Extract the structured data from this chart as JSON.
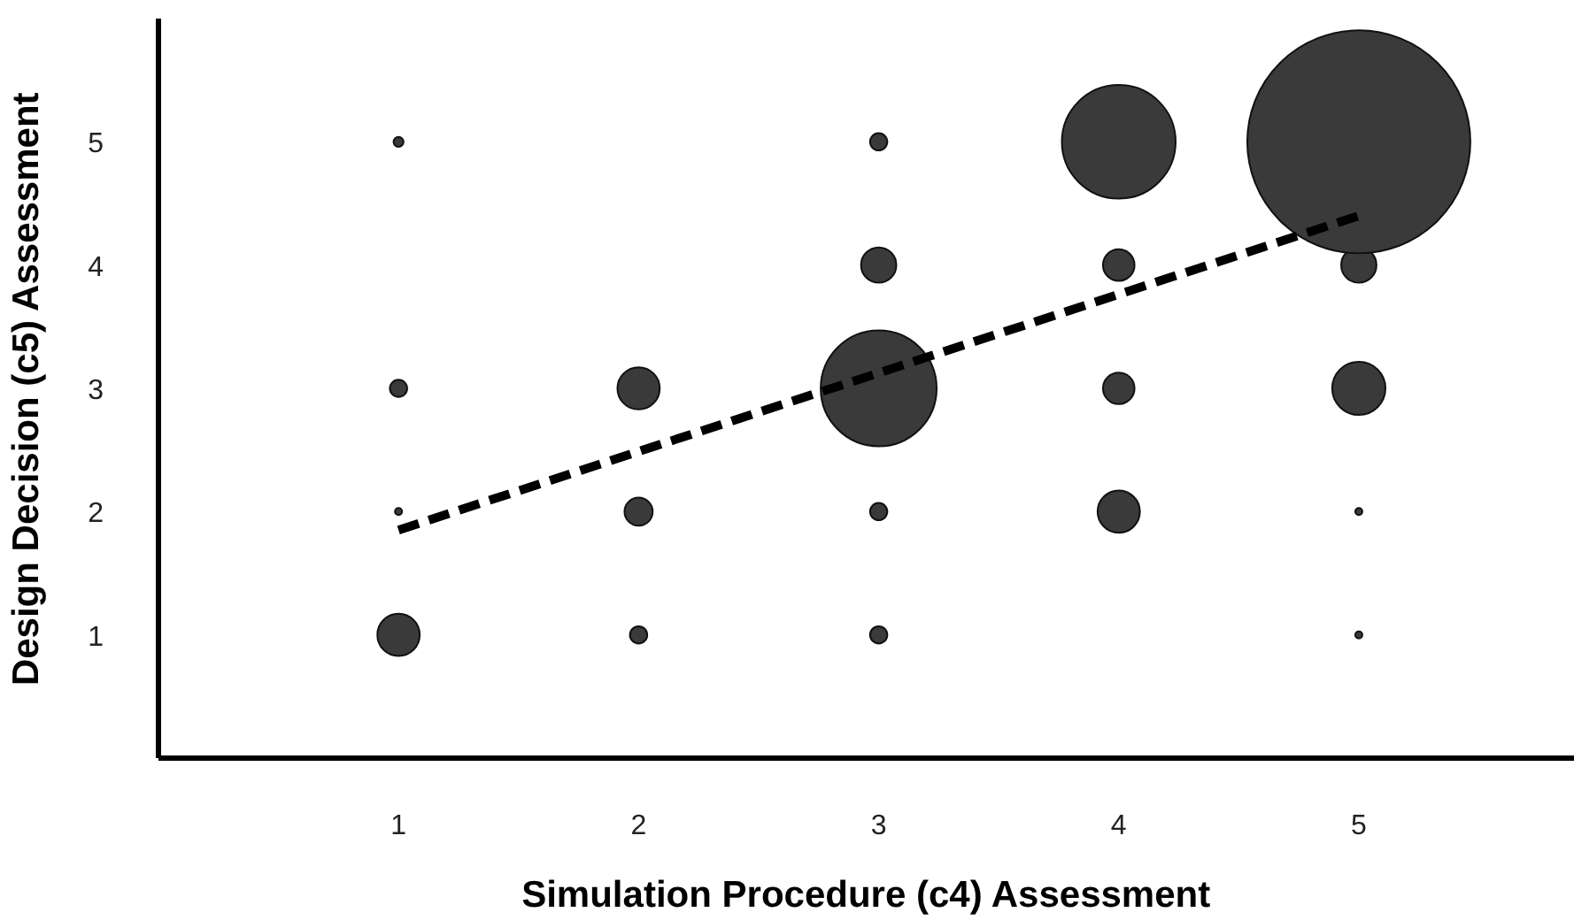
{
  "chart_data": {
    "type": "bubble",
    "xlabel": "Simulation Procedure (c4) Assessment",
    "ylabel": "Design Decision (c5) Assessment",
    "xlim": [
      0,
      5.9
    ],
    "ylim": [
      0,
      6
    ],
    "xticks": [
      1,
      2,
      3,
      4,
      5
    ],
    "yticks": [
      1,
      2,
      3,
      4,
      5
    ],
    "grid": false,
    "series": [
      {
        "color": "#3a3a3a",
        "x": [
          1,
          1,
          1,
          1,
          2,
          2,
          2,
          3,
          3,
          3,
          3,
          3,
          4,
          4,
          4,
          4,
          5,
          5,
          5,
          5,
          5
        ],
        "values": [
          1,
          2,
          3,
          5,
          1,
          2,
          3,
          1,
          2,
          3,
          4,
          5,
          2,
          3,
          4,
          5,
          1,
          2,
          3,
          4,
          5
        ],
        "sizes": [
          0.036,
          0.001,
          0.006,
          0.002,
          0.006,
          0.016,
          0.036,
          0.006,
          0.006,
          0.27,
          0.025,
          0.006,
          0.036,
          0.02,
          0.02,
          0.26,
          0.001,
          0.001,
          0.057,
          0.025,
          1
        ]
      },
      {
        "type": "line",
        "color": "#000000",
        "line_style": "dashed",
        "marker": "none",
        "x": [
          1,
          5
        ],
        "values": [
          1.85,
          4.4
        ]
      }
    ]
  }
}
